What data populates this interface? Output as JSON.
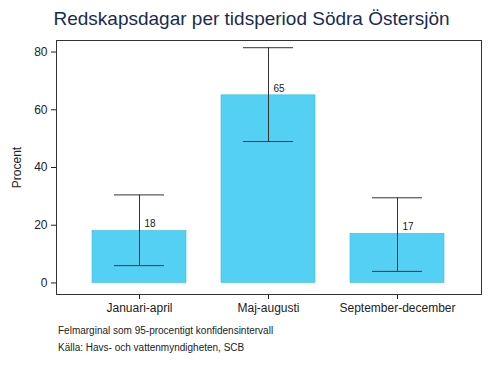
{
  "chart_data": {
    "type": "bar",
    "title": "Redskapsdagar per tidsperiod Södra Östersjön",
    "y_label": "Procent",
    "categories": [
      "Januari-april",
      "Maj-augusti",
      "September-december"
    ],
    "values": [
      18,
      65,
      17
    ],
    "ci_low": [
      6,
      49,
      4
    ],
    "ci_high": [
      30.5,
      81.5,
      29.5
    ],
    "color": "#55d0f5",
    "ylim": [
      -4,
      84
    ],
    "yticks": [
      0,
      20,
      40,
      60,
      80
    ],
    "grid": false,
    "data_labels": true,
    "notes": [
      "Felmarginal som 95-procentigt konfidensintervall",
      "Källa: Havs- och vattenmyndigheten, SCB"
    ]
  }
}
